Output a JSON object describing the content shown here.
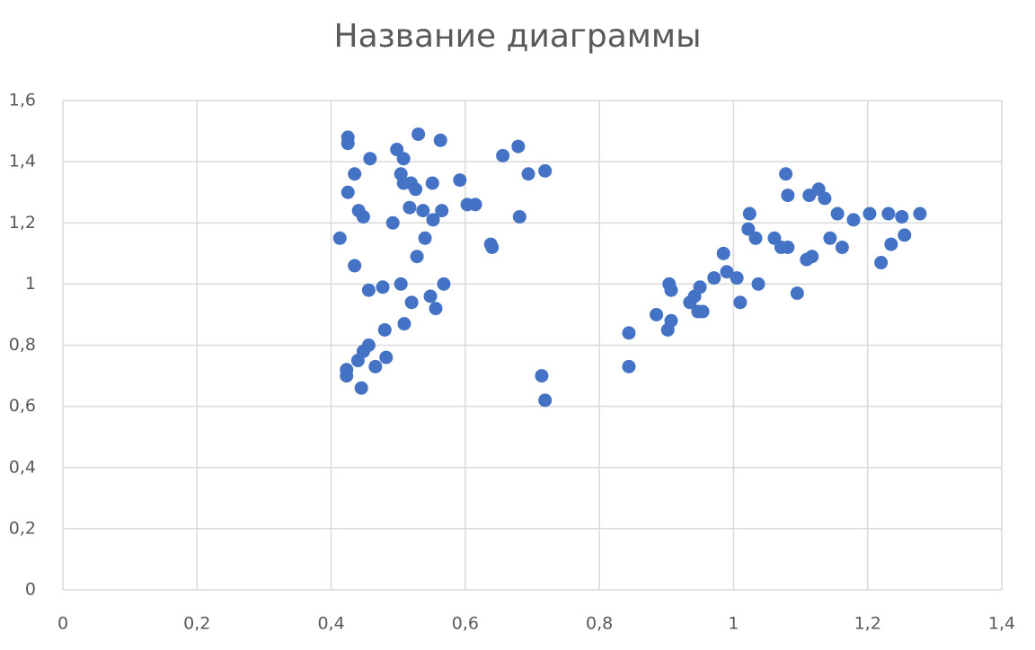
{
  "chart_data": {
    "type": "scatter",
    "title": "Название диаграммы",
    "color": "#4472c4",
    "grid": true,
    "xlim": [
      0,
      1.4
    ],
    "ylim": [
      0,
      1.6
    ],
    "xticks": [
      0,
      {
        "value": 0.2,
        "label": "0,2"
      },
      {
        "value": 0.4,
        "label": "0,4"
      },
      {
        "value": 0.6,
        "label": "0,6"
      },
      {
        "value": 0.8,
        "label": "0,8"
      },
      1,
      {
        "value": 1.2,
        "label": "1,2"
      },
      {
        "value": 1.4,
        "label": "1,4"
      }
    ],
    "yticks": [
      0,
      {
        "value": 0.2,
        "label": "0,2"
      },
      {
        "value": 0.4,
        "label": "0,4"
      },
      {
        "value": 0.6,
        "label": "0,6"
      },
      {
        "value": 0.8,
        "label": "0,8"
      },
      1,
      {
        "value": 1.2,
        "label": "1,2"
      },
      {
        "value": 1.4,
        "label": "1,4"
      },
      {
        "value": 1.6,
        "label": "1,6"
      }
    ],
    "x": [
      0.425,
      0.425,
      0.435,
      0.425,
      0.413,
      0.441,
      0.448,
      0.435,
      0.458,
      0.456,
      0.477,
      0.48,
      0.456,
      0.448,
      0.44,
      0.423,
      0.423,
      0.445,
      0.466,
      0.482,
      0.498,
      0.508,
      0.504,
      0.508,
      0.519,
      0.526,
      0.53,
      0.563,
      0.551,
      0.492,
      0.517,
      0.537,
      0.565,
      0.552,
      0.54,
      0.528,
      0.504,
      0.52,
      0.509,
      0.548,
      0.556,
      0.568,
      0.592,
      0.603,
      0.615,
      0.638,
      0.64,
      0.656,
      0.679,
      0.694,
      0.719,
      0.681,
      0.714,
      0.719,
      0.844,
      0.844,
      0.885,
      0.904,
      0.907,
      0.907,
      0.902,
      0.935,
      0.942,
      0.95,
      0.947,
      0.954,
      0.971,
      0.985,
      0.99,
      1.005,
      1.01,
      1.024,
      1.022,
      1.033,
      1.037,
      1.061,
      1.071,
      1.081,
      1.078,
      1.081,
      1.095,
      1.109,
      1.117,
      1.113,
      1.127,
      1.136,
      1.144,
      1.155,
      1.162,
      1.179,
      1.203,
      1.231,
      1.251,
      1.22,
      1.235,
      1.255,
      1.278
    ],
    "values": [
      1.48,
      1.46,
      1.36,
      1.3,
      1.15,
      1.24,
      1.22,
      1.06,
      1.41,
      0.98,
      0.99,
      0.85,
      0.8,
      0.78,
      0.75,
      0.72,
      0.7,
      0.66,
      0.73,
      0.76,
      1.44,
      1.41,
      1.36,
      1.33,
      1.33,
      1.31,
      1.49,
      1.47,
      1.33,
      1.2,
      1.25,
      1.24,
      1.24,
      1.21,
      1.15,
      1.09,
      1.0,
      0.94,
      0.87,
      0.96,
      0.92,
      1.0,
      1.34,
      1.26,
      1.26,
      1.13,
      1.12,
      1.42,
      1.45,
      1.36,
      1.37,
      1.22,
      0.7,
      0.62,
      0.84,
      0.73,
      0.9,
      1.0,
      0.98,
      0.88,
      0.85,
      0.94,
      0.96,
      0.99,
      0.91,
      0.91,
      1.02,
      1.1,
      1.04,
      1.02,
      0.94,
      1.23,
      1.18,
      1.15,
      1.0,
      1.15,
      1.12,
      1.12,
      1.36,
      1.29,
      0.97,
      1.08,
      1.09,
      1.29,
      1.31,
      1.28,
      1.15,
      1.23,
      1.12,
      1.21,
      1.23,
      1.23,
      1.22,
      1.07,
      1.13,
      1.16,
      1.23
    ]
  }
}
